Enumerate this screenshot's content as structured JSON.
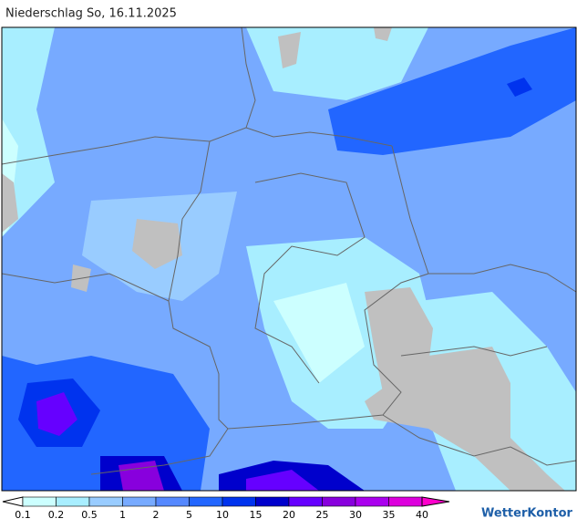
{
  "header": {
    "title": "Niederschlag So, 16.11.2025"
  },
  "legend": {
    "labels": [
      "0.1",
      "0.2",
      "0.5",
      "1",
      "2",
      "5",
      "10",
      "15",
      "20",
      "25",
      "30",
      "35",
      "40"
    ],
    "colors": [
      "#ffffff",
      "#ccffff",
      "#a8eeff",
      "#99ccff",
      "#77aaff",
      "#5588ff",
      "#2266ff",
      "#0033ee",
      "#0000cc",
      "#6600ff",
      "#8800dd",
      "#aa00ee",
      "#dd00dd",
      "#ff00cc"
    ]
  },
  "brand": "WetterKontor"
}
